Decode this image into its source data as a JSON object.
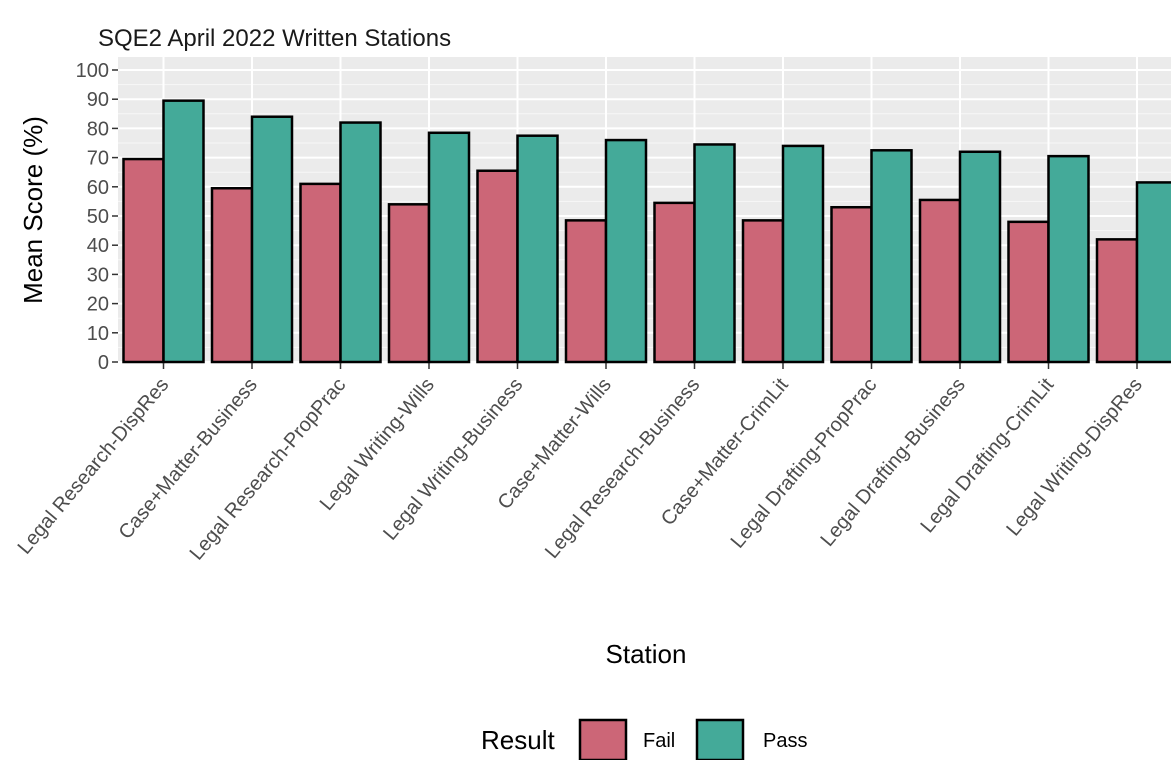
{
  "chart_data": {
    "type": "bar",
    "title": "SQE2 April 2022 Written Stations",
    "xlabel": "Station",
    "ylabel": "Mean Score (%)",
    "ylim": [
      0,
      100
    ],
    "yticks": [
      0,
      10,
      20,
      30,
      40,
      50,
      60,
      70,
      80,
      90,
      100
    ],
    "grid": true,
    "legend_position": "bottom",
    "legend_title": "Result",
    "categories": [
      "Legal Research-DispRes",
      "Case+Matter-Business",
      "Legal Research-PropPrac",
      "Legal Writing-Wills",
      "Legal Writing-Business",
      "Case+Matter-Wills",
      "Legal Research-Business",
      "Case+Matter-CrimLit",
      "Legal Drafting-PropPrac",
      "Legal Drafting-Business",
      "Legal Drafting-CrimLit",
      "Legal Writing-DispRes"
    ],
    "series": [
      {
        "name": "Fail",
        "color": "#cc6677",
        "values": [
          69.5,
          59.5,
          61,
          54,
          65.5,
          48.5,
          54.5,
          48.5,
          53,
          55.5,
          48,
          42
        ]
      },
      {
        "name": "Pass",
        "color": "#44aa99",
        "values": [
          89.5,
          84,
          82,
          78.5,
          77.5,
          76,
          74.5,
          74,
          72.5,
          72,
          70.5,
          61.5
        ]
      }
    ]
  }
}
